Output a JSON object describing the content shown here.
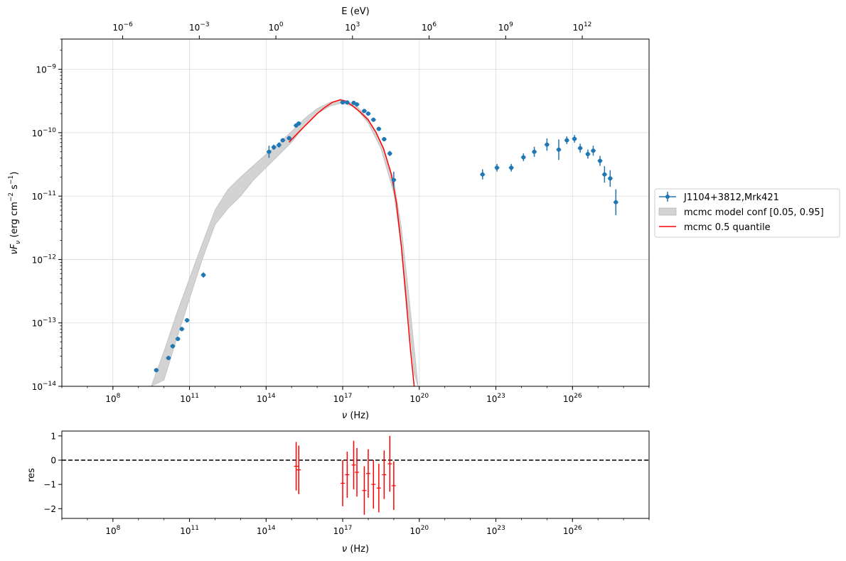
{
  "chart_data": [
    {
      "type": "scatter",
      "xlabel_base": "ν",
      "xlabel_unit": "(Hz)",
      "xscale": "log",
      "yscale": "log",
      "xlim": [
        1000000.0,
        1e+29
      ],
      "ylim": [
        1e-14,
        3e-09
      ],
      "top_axis_label": "E (eV)",
      "top_axis_ticks_exp": [
        "-6",
        "-3",
        "0",
        "3",
        "6",
        "9",
        "12"
      ],
      "x_ticks_exp": [
        "8",
        "11",
        "14",
        "17",
        "20",
        "23",
        "26"
      ],
      "y_ticks_exp": [
        "-9",
        "-10",
        "-11",
        "-12",
        "-13",
        "-14"
      ],
      "ylabel_parts": {
        "nu": "ν",
        "F": "F",
        "sub": "ν",
        "unit_open": "(erg cm",
        "unit_exp1": "−2",
        "unit_mid": "s",
        "unit_exp2": "−1",
        "unit_close": ")"
      },
      "grid": true,
      "legend_placement": "right",
      "legend": [
        {
          "label": "J1104+3812,Mrk421",
          "kind": "errorbar"
        },
        {
          "label": "mcmc model conf [0.05, 0.95]",
          "kind": "band"
        },
        {
          "label": "mcmc 0.5 quantile",
          "kind": "line"
        }
      ],
      "colors": {
        "data": "#1f77b4",
        "band": "#d3d3d3",
        "model": "#ff0000",
        "grid": "#d9d9d9"
      },
      "series": [
        {
          "name": "J1104+3812,Mrk421",
          "points": [
            [
              5000000000.0,
              1.8e-14
            ],
            [
              15000000000.0,
              2.8e-14
            ],
            [
              22000000000.0,
              4.3e-14
            ],
            [
              35000000000.0,
              5.6e-14
            ],
            [
              50000000000.0,
              8e-14
            ],
            [
              80000000000.0,
              1.1e-13
            ],
            [
              350000000000.0,
              5.7e-13
            ],
            [
              130000000000000.0,
              5e-11
            ],
            [
              200000000000000.0,
              5.9e-11
            ],
            [
              320000000000000.0,
              6.4e-11
            ],
            [
              450000000000000.0,
              7.6e-11
            ],
            [
              800000000000000.0,
              8.2e-11
            ],
            [
              1500000000000000.0,
              1.3e-10
            ],
            [
              1900000000000000.0,
              1.4e-10
            ],
            [
              1e+17,
              3e-10
            ],
            [
              1.5e+17,
              3e-10
            ],
            [
              2.7e+17,
              2.95e-10
            ],
            [
              3.6e+17,
              2.8e-10
            ],
            [
              7e+17,
              2.2e-10
            ],
            [
              1e+18,
              2e-10
            ],
            [
              1.6e+18,
              1.6e-10
            ],
            [
              2.6e+18,
              1.15e-10
            ],
            [
              4.2e+18,
              7.9e-11
            ],
            [
              7e+18,
              4.7e-11
            ],
            [
              1e+19,
              1.8e-11
            ],
            [
              3e+22,
              2.2e-11
            ],
            [
              1.1e+23,
              2.8e-11
            ],
            [
              4e+23,
              2.8e-11
            ],
            [
              1.2e+24,
              4.1e-11
            ],
            [
              3.2e+24,
              5e-11
            ],
            [
              1e+25,
              6.5e-11
            ],
            [
              2.9e+25,
              5.4e-11
            ],
            [
              6e+25,
              7.6e-11
            ],
            [
              1.2e+26,
              8e-11
            ],
            [
              2e+26,
              5.7e-11
            ],
            [
              4e+26,
              4.6e-11
            ],
            [
              6.5e+26,
              5.2e-11
            ],
            [
              1.2e+27,
              3.6e-11
            ],
            [
              1.8e+27,
              2.2e-11
            ],
            [
              3e+27,
              1.9e-11
            ],
            [
              5e+27,
              8e-12
            ]
          ],
          "yerr_factor": [
            1.08,
            1.08,
            1.08,
            1.08,
            1.08,
            1.08,
            1.1,
            1.25,
            1.1,
            1.1,
            1.08,
            1.08,
            1.06,
            1.06,
            1.04,
            1.04,
            1.06,
            1.06,
            1.06,
            1.05,
            1.06,
            1.08,
            1.08,
            1.1,
            1.35,
            1.2,
            1.15,
            1.15,
            1.15,
            1.2,
            1.25,
            1.45,
            1.15,
            1.15,
            1.18,
            1.18,
            1.2,
            1.2,
            1.35,
            1.35,
            1.6
          ]
        },
        {
          "name": "mcmc 0.5 quantile",
          "x_exp": [
            14.9,
            15.3,
            15.7,
            16.0,
            16.3,
            16.6,
            16.9,
            17.1,
            17.4,
            17.7,
            18.0,
            18.3,
            18.6,
            18.9,
            19.1,
            19.3,
            19.5,
            19.65,
            19.8
          ],
          "y_exp": [
            -10.15,
            -9.98,
            -9.82,
            -9.7,
            -9.6,
            -9.52,
            -9.48,
            -9.5,
            -9.58,
            -9.68,
            -9.8,
            -9.99,
            -10.25,
            -10.65,
            -11.1,
            -11.8,
            -12.7,
            -13.4,
            -14.0
          ]
        },
        {
          "name": "mcmc model conf [0.05, 0.95]",
          "x_exp": [
            9.5,
            10.0,
            10.5,
            11.0,
            11.5,
            12.0,
            12.5,
            13.0,
            13.5,
            14.0,
            14.5,
            15.0,
            15.5,
            16.0,
            16.5,
            17.0,
            17.5,
            18.0,
            18.5,
            19.0,
            19.3,
            19.6,
            19.8,
            19.95
          ],
          "y_upper_exp": [
            -14.0,
            -13.45,
            -12.85,
            -12.3,
            -11.75,
            -11.22,
            -10.9,
            -10.7,
            -10.52,
            -10.34,
            -10.17,
            -9.98,
            -9.78,
            -9.62,
            -9.52,
            -9.48,
            -9.56,
            -9.78,
            -10.15,
            -10.75,
            -11.5,
            -12.6,
            -13.4,
            -14.0
          ],
          "y_lower_exp": [
            -14.0,
            -13.9,
            -13.25,
            -12.62,
            -12.0,
            -11.45,
            -11.2,
            -11.0,
            -10.75,
            -10.55,
            -10.35,
            -10.15,
            -9.9,
            -9.7,
            -9.58,
            -9.53,
            -9.6,
            -9.85,
            -10.25,
            -10.95,
            -11.8,
            -12.95,
            -13.8,
            -14.0
          ]
        }
      ]
    },
    {
      "type": "scatter",
      "xlabel_base": "ν",
      "xlabel_unit": "(Hz)",
      "ylabel": "res",
      "xscale": "log",
      "xlim": [
        1000000.0,
        1e+29
      ],
      "ylim": [
        -2.4,
        1.2
      ],
      "x_ticks_exp": [
        "8",
        "11",
        "14",
        "17",
        "20",
        "23",
        "26"
      ],
      "y_ticks": [
        "1",
        "0",
        "−1",
        "−2"
      ],
      "y_tick_values": [
        1,
        0,
        -1,
        -2
      ],
      "reference_line": 0,
      "colors": {
        "residuals": "#ff0000",
        "reference": "#000000"
      },
      "series": [
        {
          "name": "residuals",
          "points": [
            [
              1500000000000000.0,
              -0.25,
              1.0
            ],
            [
              1900000000000000.0,
              -0.4,
              1.0
            ],
            [
              1e+17,
              -0.95,
              0.95
            ],
            [
              1.5e+17,
              -0.6,
              0.95
            ],
            [
              2.7e+17,
              -0.2,
              1.0
            ],
            [
              3.6e+17,
              -0.5,
              1.0
            ],
            [
              7e+17,
              -1.25,
              1.0
            ],
            [
              1e+18,
              -0.55,
              1.0
            ],
            [
              1.6e+18,
              -1.0,
              1.0
            ],
            [
              2.6e+18,
              -1.15,
              1.0
            ],
            [
              4.2e+18,
              -0.6,
              1.0
            ],
            [
              7e+18,
              -0.15,
              1.15
            ],
            [
              1e+19,
              -1.05,
              1.0
            ]
          ]
        }
      ]
    }
  ]
}
